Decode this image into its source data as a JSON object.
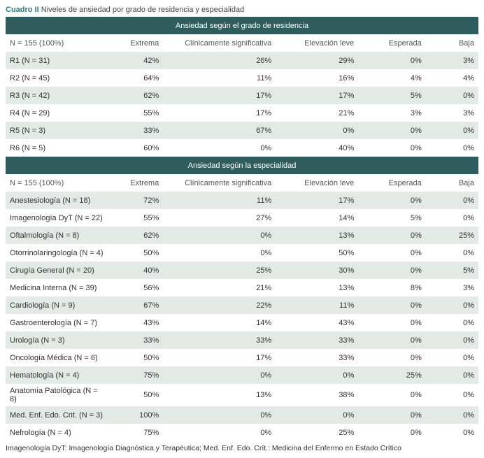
{
  "title": {
    "cuadro": "Cuadro II",
    "text": "Niveles de ansiedad por grado de residencia y especialidad"
  },
  "section1": {
    "header": "Ansiedad según el grado de residencia",
    "n_label": "N = 155 (100%)",
    "columns": [
      "Extrema",
      "Clínicamente significativa",
      "Elevación leve",
      "Esperada",
      "Baja"
    ],
    "rows": [
      {
        "label": "R1 (N = 31)",
        "vals": [
          "42%",
          "26%",
          "29%",
          "0%",
          "3%"
        ]
      },
      {
        "label": "R2 (N =  45)",
        "vals": [
          "64%",
          "11%",
          "16%",
          "4%",
          "4%"
        ]
      },
      {
        "label": "R3 (N = 42)",
        "vals": [
          "62%",
          "17%",
          "17%",
          "5%",
          "0%"
        ]
      },
      {
        "label": "R4 (N = 29)",
        "vals": [
          "55%",
          "17%",
          "21%",
          "3%",
          "3%"
        ]
      },
      {
        "label": "R5 (N = 3)",
        "vals": [
          "33%",
          "67%",
          "0%",
          "0%",
          "0%"
        ]
      },
      {
        "label": "R6 (N = 5)",
        "vals": [
          "60%",
          "0%",
          "40%",
          "0%",
          "0%"
        ]
      }
    ]
  },
  "section2": {
    "header": "Ansiedad según la especialidad",
    "n_label": "N = 155 (100%)",
    "columns": [
      "Extrema",
      "Clínicamente significativa",
      "Elevación leve",
      "Esperada",
      "Baja"
    ],
    "rows": [
      {
        "label": "Anestesiología (N = 18)",
        "vals": [
          "72%",
          "11%",
          "17%",
          "0%",
          "0%"
        ]
      },
      {
        "label": "Imagenología DyT (N = 22)",
        "vals": [
          "55%",
          "27%",
          "14%",
          "5%",
          "0%"
        ]
      },
      {
        "label": "Oftalmología (N = 8)",
        "vals": [
          "62%",
          "0%",
          "13%",
          "0%",
          "25%"
        ]
      },
      {
        "label": "Otorrinolaringología (N = 4)",
        "vals": [
          "50%",
          "0%",
          "50%",
          "0%",
          "0%"
        ]
      },
      {
        "label": "Cirugía General (N = 20)",
        "vals": [
          "40%",
          "25%",
          "30%",
          "0%",
          "5%"
        ]
      },
      {
        "label": "Medicina Interna (N = 39)",
        "vals": [
          "56%",
          "21%",
          "13%",
          "8%",
          "3%"
        ]
      },
      {
        "label": "Cardiología (N = 9)",
        "vals": [
          "67%",
          "22%",
          "11%",
          "0%",
          "0%"
        ]
      },
      {
        "label": "Gastroenterología (N = 7)",
        "vals": [
          "43%",
          "14%",
          "43%",
          "0%",
          "0%"
        ]
      },
      {
        "label": "Urología (N = 3)",
        "vals": [
          "33%",
          "33%",
          "33%",
          "0%",
          "0%"
        ]
      },
      {
        "label": "Oncología Médica (N = 6)",
        "vals": [
          "50%",
          "17%",
          "33%",
          "0%",
          "0%"
        ]
      },
      {
        "label": "Hematología (N = 4)",
        "vals": [
          "75%",
          "0%",
          "0%",
          "25%",
          "0%"
        ]
      },
      {
        "label": "Anatomía Patológica (N = 8)",
        "vals": [
          "50%",
          "13%",
          "38%",
          "0%",
          "0%"
        ]
      },
      {
        "label": "Med. Enf. Edo. Crit. (N = 3)",
        "vals": [
          "100%",
          "0%",
          "0%",
          "0%",
          "0%"
        ]
      },
      {
        "label": "Nefrología (N = 4)",
        "vals": [
          "75%",
          "0%",
          "25%",
          "0%",
          "0%"
        ]
      }
    ]
  },
  "footnote": "Imagenología DyT: Imagenología Diagnóstica y Terapéutica; Med. Enf. Edo. Crít.: Medicina del Enfermo en Estado Crítico"
}
